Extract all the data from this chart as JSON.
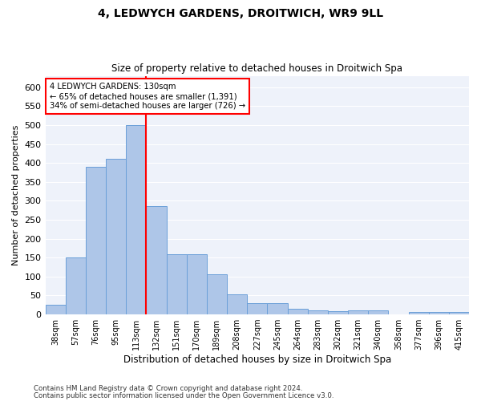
{
  "title": "4, LEDWYCH GARDENS, DROITWICH, WR9 9LL",
  "subtitle": "Size of property relative to detached houses in Droitwich Spa",
  "xlabel": "Distribution of detached houses by size in Droitwich Spa",
  "ylabel": "Number of detached properties",
  "categories": [
    "38sqm",
    "57sqm",
    "76sqm",
    "95sqm",
    "113sqm",
    "132sqm",
    "151sqm",
    "170sqm",
    "189sqm",
    "208sqm",
    "227sqm",
    "245sqm",
    "264sqm",
    "283sqm",
    "302sqm",
    "321sqm",
    "340sqm",
    "358sqm",
    "377sqm",
    "396sqm",
    "415sqm"
  ],
  "values": [
    25,
    150,
    390,
    410,
    500,
    287,
    158,
    158,
    107,
    53,
    30,
    30,
    15,
    11,
    8,
    10,
    10,
    0,
    6,
    6,
    6
  ],
  "bar_color": "#aec6e8",
  "bar_edge_color": "#6a9fd8",
  "bar_width": 1.0,
  "vline_x": 4.5,
  "vline_color": "red",
  "annotation_title": "4 LEDWYCH GARDENS: 130sqm",
  "annotation_line1": "← 65% of detached houses are smaller (1,391)",
  "annotation_line2": "34% of semi-detached houses are larger (726) →",
  "annotation_box_color": "red",
  "ylim": [
    0,
    630
  ],
  "yticks": [
    0,
    50,
    100,
    150,
    200,
    250,
    300,
    350,
    400,
    450,
    500,
    550,
    600
  ],
  "footnote1": "Contains HM Land Registry data © Crown copyright and database right 2024.",
  "footnote2": "Contains public sector information licensed under the Open Government Licence v3.0.",
  "background_color": "#eef2fa",
  "plot_background": "#ffffff"
}
